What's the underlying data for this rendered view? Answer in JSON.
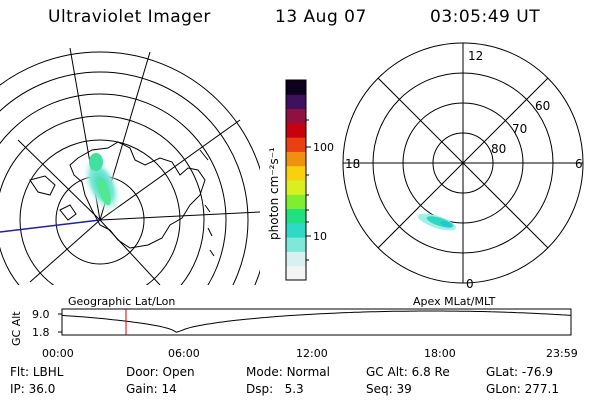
{
  "header": {
    "title": "Ultraviolet Imager",
    "date": "13 Aug 07",
    "time": "03:05:49 UT"
  },
  "left_map": {
    "label": "Geographic Lat/Lon"
  },
  "colorbar": {
    "unit_label": "photon cm⁻²s⁻¹",
    "ticks": [
      "100",
      "10"
    ],
    "colors": [
      "#f4f4f4",
      "#d8f0f0",
      "#80e8d8",
      "#30d8c8",
      "#20e080",
      "#80ee30",
      "#d8f020",
      "#f8d010",
      "#f09010",
      "#e84010",
      "#c80010",
      "#901040",
      "#401060",
      "#100020"
    ]
  },
  "right_polar": {
    "label": "Apex MLat/MLT",
    "mlt_labels": {
      "top": "12",
      "bottom": "0",
      "left": "18",
      "right": "6"
    },
    "lat_labels": [
      "60",
      "70",
      "80"
    ]
  },
  "orbit_plot": {
    "ylabel": "GC Alt",
    "yticks": [
      "9.0",
      "1.8"
    ],
    "xticks": [
      "00:00",
      "06:00",
      "12:00",
      "18:00",
      "23:59"
    ],
    "current_marker_color": "#e00000"
  },
  "footer": {
    "row1": [
      {
        "key": "Flt:",
        "value": "LBHL"
      },
      {
        "key": "Door:",
        "value": "Open"
      },
      {
        "key": "Mode:",
        "value": "Normal"
      },
      {
        "key": "GC Alt:",
        "value": "6.8 Re"
      },
      {
        "key": "GLat:",
        "value": "-76.9"
      }
    ],
    "row2": [
      {
        "key": "IP:",
        "value": "36.0"
      },
      {
        "key": "Gain:",
        "value": "14"
      },
      {
        "key": "Dsp:",
        "value": "5.3"
      },
      {
        "key": "Seq:",
        "value": "39"
      },
      {
        "key": "GLon:",
        "value": "277.1"
      }
    ]
  }
}
